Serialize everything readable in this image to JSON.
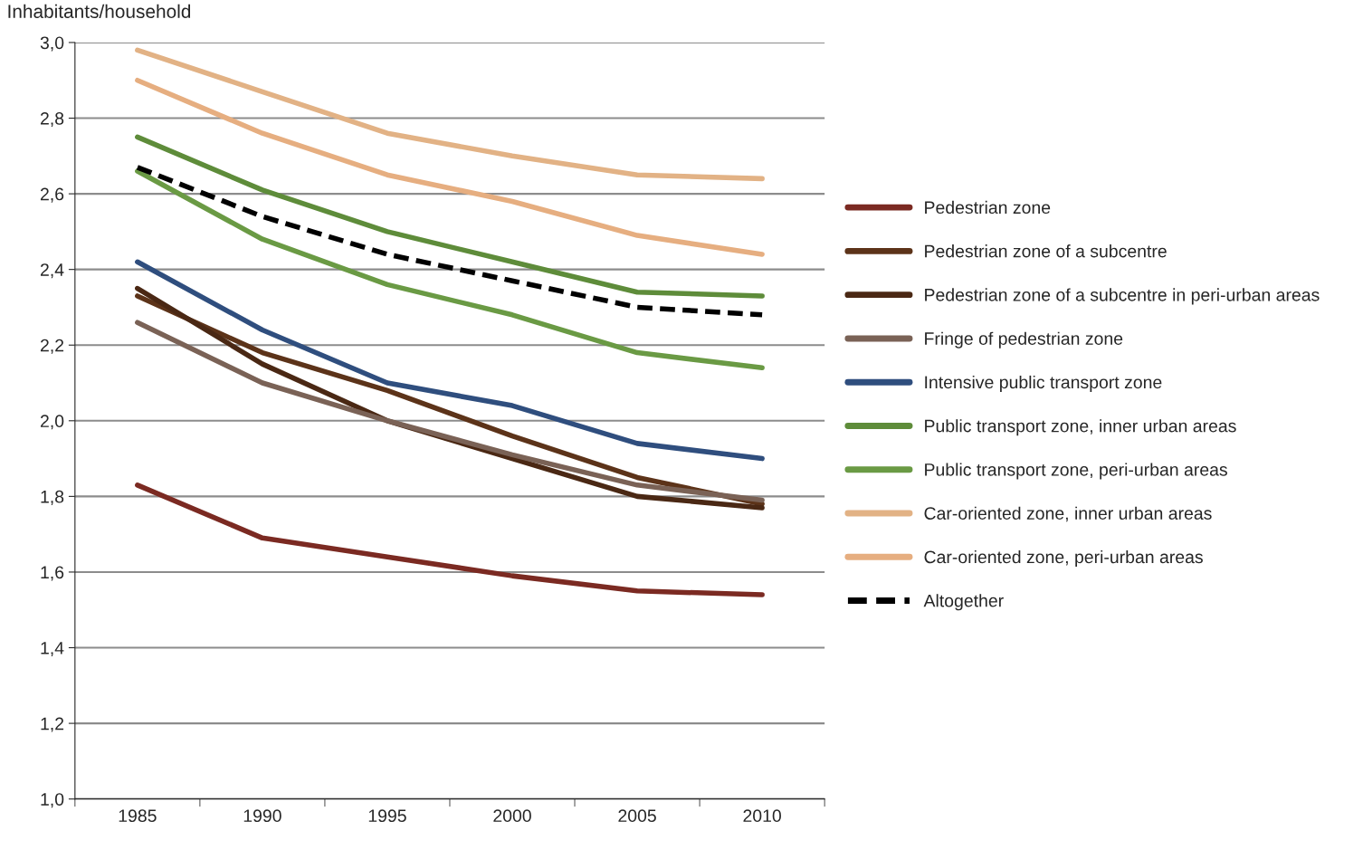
{
  "chart_data": {
    "type": "line",
    "ylabel": "Inhabitants/household",
    "categories": [
      "1985",
      "1990",
      "1995",
      "2000",
      "2005",
      "2010"
    ],
    "ylim": [
      1.0,
      3.0
    ],
    "yticks": [
      {
        "value": 1.0,
        "label": "1,0"
      },
      {
        "value": 1.2,
        "label": "1,2"
      },
      {
        "value": 1.4,
        "label": "1,4"
      },
      {
        "value": 1.6,
        "label": "1,6"
      },
      {
        "value": 1.8,
        "label": "1,8"
      },
      {
        "value": 2.0,
        "label": "2,0"
      },
      {
        "value": 2.2,
        "label": "2,2"
      },
      {
        "value": 2.4,
        "label": "2,4"
      },
      {
        "value": 2.6,
        "label": "2,6"
      },
      {
        "value": 2.8,
        "label": "2,8"
      },
      {
        "value": 3.0,
        "label": "3,0"
      }
    ],
    "grid": "y",
    "legend": "right",
    "line_style": "solid",
    "marker": "none",
    "series": [
      {
        "name": "Pedestrian zone",
        "color": "#7b2a22",
        "values": [
          1.83,
          1.69,
          1.64,
          1.59,
          1.55,
          1.54
        ]
      },
      {
        "name": "Pedestrian zone of a subcentre",
        "color": "#5c3319",
        "values": [
          2.33,
          2.18,
          2.08,
          1.96,
          1.85,
          1.78
        ]
      },
      {
        "name": "Pedestrian zone of a subcentre in peri-urban areas",
        "color": "#4a2814",
        "values": [
          2.35,
          2.15,
          2.0,
          1.9,
          1.8,
          1.77
        ]
      },
      {
        "name": "Fringe of pedestrian zone",
        "color": "#7a6256",
        "values": [
          2.26,
          2.1,
          2.0,
          1.91,
          1.83,
          1.79
        ]
      },
      {
        "name": "Intensive public transport zone",
        "color": "#2f4e7e",
        "values": [
          2.42,
          2.24,
          2.1,
          2.04,
          1.94,
          1.9
        ]
      },
      {
        "name": "Public transport zone, inner urban areas",
        "color": "#5e8c3a",
        "values": [
          2.75,
          2.61,
          2.5,
          2.42,
          2.34,
          2.33
        ]
      },
      {
        "name": "Public transport zone, peri-urban areas",
        "color": "#6a9a44",
        "values": [
          2.66,
          2.48,
          2.36,
          2.28,
          2.18,
          2.14
        ]
      },
      {
        "name": "Car-oriented zone, inner urban areas",
        "color": "#e2b285",
        "values": [
          2.98,
          2.87,
          2.76,
          2.7,
          2.65,
          2.64
        ]
      },
      {
        "name": "Car-oriented zone, peri-urban areas",
        "color": "#e6ae80",
        "values": [
          2.9,
          2.76,
          2.65,
          2.58,
          2.49,
          2.44
        ]
      },
      {
        "name": "Altogether",
        "color": "#000000",
        "line_style": "dashed",
        "values": [
          2.67,
          2.54,
          2.44,
          2.37,
          2.3,
          2.28
        ]
      }
    ]
  }
}
